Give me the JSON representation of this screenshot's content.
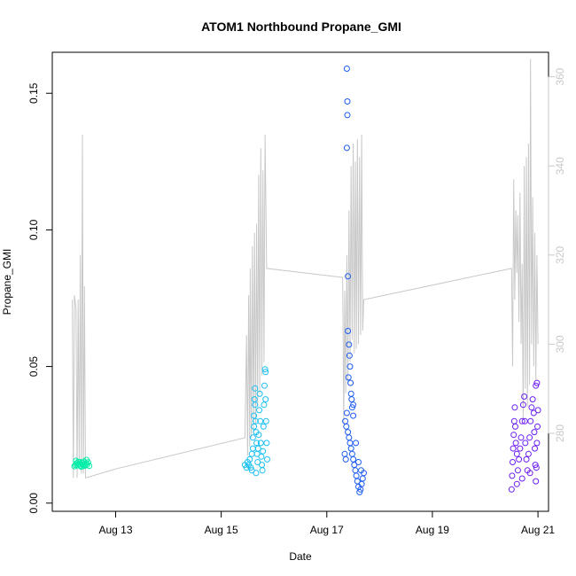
{
  "chart_data": {
    "type": "scatter",
    "title": "ATOM1 Northbound Propane_GMI",
    "xlabel": "Date",
    "ylabel": "Propane_GMI",
    "x_ticks": [
      {
        "label": "Aug 13",
        "day": 13
      },
      {
        "label": "Aug 15",
        "day": 15
      },
      {
        "label": "Aug 17",
        "day": 17
      },
      {
        "label": "Aug 19",
        "day": 19
      },
      {
        "label": "Aug 21",
        "day": 21
      }
    ],
    "xlim_days": [
      11.8,
      21.2
    ],
    "y_ticks": [
      "0.00",
      "0.05",
      "0.10",
      "0.15"
    ],
    "ylim": [
      -0.003,
      0.165
    ],
    "y2_ticks": [
      "280",
      "300",
      "320",
      "340",
      "360"
    ],
    "y2lim": [
      262.5,
      365.5
    ],
    "grid": false,
    "legend": "none",
    "series": [
      {
        "axis": "left",
        "color": "#00eea8",
        "points": [
          [
            12.22,
            0.0135
          ],
          [
            12.24,
            0.014
          ],
          [
            12.26,
            0.0145
          ],
          [
            12.28,
            0.0138
          ],
          [
            12.3,
            0.0142
          ],
          [
            12.32,
            0.015
          ],
          [
            12.34,
            0.0137
          ],
          [
            12.36,
            0.0148
          ],
          [
            12.38,
            0.014
          ],
          [
            12.4,
            0.0152
          ],
          [
            12.42,
            0.0139
          ],
          [
            12.44,
            0.0146
          ],
          [
            12.46,
            0.0141
          ],
          [
            12.48,
            0.0149
          ],
          [
            12.5,
            0.0136
          ],
          [
            12.25,
            0.0155
          ],
          [
            12.35,
            0.0133
          ],
          [
            12.45,
            0.0158
          ],
          [
            12.29,
            0.0151
          ],
          [
            12.41,
            0.0136
          ]
        ]
      },
      {
        "axis": "left",
        "color": "#19bff2",
        "points": [
          [
            15.45,
            0.014
          ],
          [
            15.48,
            0.013
          ],
          [
            15.5,
            0.015
          ],
          [
            15.52,
            0.014
          ],
          [
            15.54,
            0.016
          ],
          [
            15.56,
            0.013
          ],
          [
            15.58,
            0.018
          ],
          [
            15.6,
            0.02
          ],
          [
            15.6,
            0.024
          ],
          [
            15.62,
            0.028
          ],
          [
            15.62,
            0.032
          ],
          [
            15.63,
            0.038
          ],
          [
            15.64,
            0.042
          ],
          [
            15.64,
            0.036
          ],
          [
            15.65,
            0.03
          ],
          [
            15.66,
            0.026
          ],
          [
            15.67,
            0.022
          ],
          [
            15.68,
            0.018
          ],
          [
            15.69,
            0.015
          ],
          [
            15.7,
            0.02
          ],
          [
            15.71,
            0.025
          ],
          [
            15.72,
            0.034
          ],
          [
            15.73,
            0.04
          ],
          [
            15.74,
            0.03
          ],
          [
            15.75,
            0.022
          ],
          [
            15.76,
            0.017
          ],
          [
            15.77,
            0.014
          ],
          [
            15.78,
            0.012
          ],
          [
            15.79,
            0.019
          ],
          [
            15.8,
            0.028
          ],
          [
            15.81,
            0.036
          ],
          [
            15.82,
            0.043
          ],
          [
            15.83,
            0.049
          ],
          [
            15.84,
            0.048
          ],
          [
            15.84,
            0.038
          ],
          [
            15.85,
            0.03
          ],
          [
            15.86,
            0.022
          ],
          [
            15.87,
            0.016
          ],
          [
            15.58,
            0.012
          ],
          [
            15.66,
            0.011
          ]
        ]
      },
      {
        "axis": "left",
        "color": "#1c5cf0",
        "points": [
          [
            17.38,
            0.159
          ],
          [
            17.39,
            0.147
          ],
          [
            17.39,
            0.142
          ],
          [
            17.38,
            0.13
          ],
          [
            17.4,
            0.083
          ],
          [
            17.4,
            0.063
          ],
          [
            17.42,
            0.058
          ],
          [
            17.43,
            0.054
          ],
          [
            17.44,
            0.05
          ],
          [
            17.41,
            0.046
          ],
          [
            17.45,
            0.044
          ],
          [
            17.46,
            0.04
          ],
          [
            17.47,
            0.038
          ],
          [
            17.48,
            0.035
          ],
          [
            17.5,
            0.032
          ],
          [
            17.35,
            0.03
          ],
          [
            17.37,
            0.028
          ],
          [
            17.4,
            0.026
          ],
          [
            17.42,
            0.024
          ],
          [
            17.44,
            0.022
          ],
          [
            17.46,
            0.02
          ],
          [
            17.48,
            0.018
          ],
          [
            17.5,
            0.016
          ],
          [
            17.52,
            0.014
          ],
          [
            17.54,
            0.012
          ],
          [
            17.56,
            0.01
          ],
          [
            17.58,
            0.008
          ],
          [
            17.6,
            0.006
          ],
          [
            17.62,
            0.004
          ],
          [
            17.64,
            0.005
          ],
          [
            17.66,
            0.007
          ],
          [
            17.68,
            0.009
          ],
          [
            17.7,
            0.011
          ],
          [
            17.34,
            0.018
          ],
          [
            17.36,
            0.016
          ],
          [
            17.38,
            0.033
          ],
          [
            17.55,
            0.022
          ],
          [
            17.6,
            0.015
          ],
          [
            17.65,
            0.012
          ],
          [
            17.5,
            0.036
          ]
        ]
      },
      {
        "axis": "left",
        "color": "#6b1ff0",
        "points": [
          [
            20.5,
            0.005
          ],
          [
            20.51,
            0.01
          ],
          [
            20.52,
            0.015
          ],
          [
            20.53,
            0.02
          ],
          [
            20.54,
            0.025
          ],
          [
            20.55,
            0.03
          ],
          [
            20.56,
            0.035
          ],
          [
            20.57,
            0.028
          ],
          [
            20.58,
            0.022
          ],
          [
            20.6,
            0.018
          ],
          [
            20.62,
            0.012
          ],
          [
            20.64,
            0.016
          ],
          [
            20.66,
            0.02
          ],
          [
            20.68,
            0.024
          ],
          [
            20.7,
            0.03
          ],
          [
            20.72,
            0.036
          ],
          [
            20.74,
            0.039
          ],
          [
            20.75,
            0.03
          ],
          [
            20.76,
            0.022
          ],
          [
            20.78,
            0.016
          ],
          [
            20.8,
            0.012
          ],
          [
            20.82,
            0.018
          ],
          [
            20.84,
            0.024
          ],
          [
            20.86,
            0.03
          ],
          [
            20.88,
            0.035
          ],
          [
            20.9,
            0.038
          ],
          [
            20.92,
            0.033
          ],
          [
            20.93,
            0.026
          ],
          [
            20.94,
            0.02
          ],
          [
            20.95,
            0.014
          ],
          [
            20.96,
            0.008
          ],
          [
            20.97,
            0.013
          ],
          [
            20.98,
            0.022
          ],
          [
            20.99,
            0.028
          ],
          [
            21.0,
            0.034
          ],
          [
            20.6,
            0.007
          ],
          [
            20.7,
            0.009
          ],
          [
            20.85,
            0.011
          ],
          [
            20.96,
            0.043
          ],
          [
            20.98,
            0.044
          ]
        ]
      },
      {
        "axis": "right",
        "color": "#c8c8c8",
        "type": "line",
        "points": [
          [
            12.18,
            310
          ],
          [
            12.2,
            270
          ],
          [
            12.22,
            311
          ],
          [
            12.25,
            308
          ],
          [
            12.27,
            270
          ],
          [
            12.29,
            310
          ],
          [
            12.31,
            274
          ],
          [
            12.33,
            320
          ],
          [
            12.35,
            271
          ],
          [
            12.37,
            347
          ],
          [
            12.39,
            271
          ],
          [
            12.41,
            313
          ],
          [
            12.43,
            270
          ],
          [
            13.0,
            272
          ],
          [
            15.45,
            279
          ],
          [
            15.48,
            302
          ],
          [
            15.5,
            275
          ],
          [
            15.52,
            311
          ],
          [
            15.54,
            277
          ],
          [
            15.55,
            317
          ],
          [
            15.57,
            279
          ],
          [
            15.59,
            322
          ],
          [
            15.61,
            280
          ],
          [
            15.63,
            325
          ],
          [
            15.65,
            282
          ],
          [
            15.67,
            327
          ],
          [
            15.69,
            286
          ],
          [
            15.71,
            338
          ],
          [
            15.73,
            289
          ],
          [
            15.75,
            344
          ],
          [
            15.77,
            293
          ],
          [
            15.79,
            339
          ],
          [
            15.81,
            296
          ],
          [
            15.83,
            347
          ],
          [
            15.86,
            317
          ],
          [
            17.3,
            315
          ],
          [
            17.32,
            282
          ],
          [
            17.34,
            312
          ],
          [
            17.36,
            289
          ],
          [
            17.38,
            320
          ],
          [
            17.4,
            291
          ],
          [
            17.42,
            330
          ],
          [
            17.44,
            296
          ],
          [
            17.46,
            340
          ],
          [
            17.48,
            301
          ],
          [
            17.5,
            345
          ],
          [
            17.52,
            298
          ],
          [
            17.54,
            341
          ],
          [
            17.56,
            299
          ],
          [
            17.58,
            346
          ],
          [
            17.6,
            300
          ],
          [
            17.62,
            342
          ],
          [
            17.64,
            302
          ],
          [
            17.66,
            347
          ],
          [
            17.68,
            303
          ],
          [
            17.7,
            310
          ],
          [
            20.5,
            317
          ],
          [
            20.52,
            295
          ],
          [
            20.54,
            337
          ],
          [
            20.56,
            310
          ],
          [
            20.58,
            330
          ],
          [
            20.6,
            316
          ],
          [
            20.62,
            329
          ],
          [
            20.64,
            305
          ],
          [
            20.66,
            334
          ],
          [
            20.68,
            300
          ],
          [
            20.7,
            318
          ],
          [
            20.72,
            283
          ],
          [
            20.74,
            340
          ],
          [
            20.76,
            290
          ],
          [
            20.78,
            342
          ],
          [
            20.8,
            286
          ],
          [
            20.82,
            345
          ],
          [
            20.84,
            291
          ],
          [
            20.86,
            364
          ],
          [
            20.88,
            300
          ],
          [
            20.9,
            333
          ],
          [
            20.92,
            295
          ],
          [
            20.94,
            325
          ],
          [
            20.96,
            292
          ],
          [
            20.98,
            320
          ],
          [
            21.0,
            300
          ]
        ]
      }
    ]
  }
}
